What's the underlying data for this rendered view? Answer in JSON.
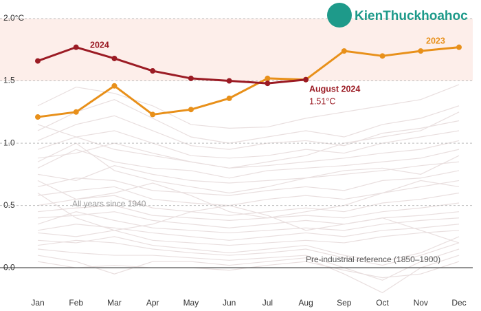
{
  "chart_data": {
    "type": "line",
    "categories": [
      "Jan",
      "Feb",
      "Mar",
      "Apr",
      "May",
      "Jun",
      "Jul",
      "Aug",
      "Sep",
      "Oct",
      "Nov",
      "Dec"
    ],
    "ylim": [
      -0.22,
      2.0
    ],
    "yticks": [
      {
        "value": 0,
        "label": "0.0"
      },
      0.5,
      {
        "value": 1,
        "label": "1.0"
      },
      1.5,
      {
        "value": 2,
        "label": "2.0°C"
      }
    ],
    "grid": true,
    "shaded_range": [
      1.5,
      2.0
    ],
    "shaded_color": "#fdeeea",
    "series": [
      {
        "name": "2024",
        "color": "#9b1b24",
        "values": [
          1.66,
          1.77,
          1.68,
          1.58,
          1.52,
          1.5,
          1.48,
          1.51,
          null,
          null,
          null,
          null
        ],
        "value_labels": [
          null,
          null,
          null,
          null,
          null,
          null,
          null,
          "1.51°C",
          null,
          null,
          null,
          null
        ]
      },
      {
        "name": "2023",
        "color": "#e8901a",
        "values": [
          1.21,
          1.25,
          1.46,
          1.23,
          1.27,
          1.36,
          1.52,
          1.51,
          1.74,
          1.7,
          1.74,
          1.77
        ]
      }
    ],
    "background_label": "All years since 1940",
    "background_color": "#e9dfdf",
    "background_series": [
      [
        1.3,
        1.45,
        1.4,
        1.3,
        1.15,
        1.12,
        1.13,
        1.2,
        1.25,
        1.3,
        1.35,
        1.47
      ],
      [
        1.1,
        1.25,
        1.35,
        1.2,
        1.05,
        1.0,
        1.05,
        1.1,
        1.05,
        1.15,
        1.2,
        1.3
      ],
      [
        1.02,
        1.15,
        1.22,
        1.1,
        0.98,
        0.95,
        1.0,
        1.02,
        0.98,
        1.08,
        1.12,
        1.18
      ],
      [
        0.95,
        1.05,
        1.1,
        1.0,
        0.9,
        0.88,
        0.9,
        0.95,
        0.92,
        1.0,
        1.05,
        1.1
      ],
      [
        0.88,
        0.92,
        1.0,
        0.92,
        0.85,
        0.8,
        0.82,
        0.85,
        0.88,
        0.92,
        0.95,
        1.02
      ],
      [
        0.8,
        0.95,
        0.85,
        0.8,
        0.78,
        0.72,
        0.78,
        0.8,
        0.82,
        0.85,
        0.88,
        0.95
      ],
      [
        0.75,
        0.7,
        0.82,
        0.75,
        0.7,
        0.68,
        0.7,
        0.72,
        0.75,
        0.78,
        0.82,
        0.85
      ],
      [
        0.65,
        0.72,
        0.7,
        0.62,
        0.6,
        0.58,
        0.62,
        0.65,
        0.62,
        0.7,
        0.72,
        0.78
      ],
      [
        0.58,
        0.62,
        0.65,
        0.55,
        0.52,
        0.5,
        0.55,
        0.58,
        0.55,
        0.6,
        0.65,
        0.7
      ],
      [
        0.5,
        0.55,
        0.58,
        0.48,
        0.45,
        0.42,
        0.45,
        0.48,
        0.45,
        0.52,
        0.55,
        0.6
      ],
      [
        0.45,
        0.48,
        0.5,
        0.42,
        0.4,
        0.38,
        0.4,
        0.42,
        0.4,
        0.45,
        0.48,
        0.52
      ],
      [
        0.4,
        0.42,
        0.45,
        0.38,
        0.35,
        0.32,
        0.35,
        0.38,
        0.35,
        0.4,
        0.42,
        0.45
      ],
      [
        0.35,
        0.45,
        0.38,
        0.32,
        0.3,
        0.28,
        0.3,
        0.32,
        0.3,
        0.35,
        0.38,
        0.4
      ],
      [
        0.3,
        0.35,
        0.32,
        0.28,
        0.25,
        0.22,
        0.25,
        0.28,
        0.25,
        0.3,
        0.32,
        0.35
      ],
      [
        0.28,
        0.25,
        0.3,
        0.22,
        0.2,
        0.18,
        0.2,
        0.22,
        0.2,
        0.25,
        0.28,
        0.3
      ],
      [
        0.22,
        0.2,
        0.25,
        0.18,
        0.15,
        0.12,
        0.15,
        0.18,
        0.1,
        0.05,
        0.12,
        0.25
      ],
      [
        0.18,
        0.22,
        0.2,
        0.15,
        0.12,
        0.1,
        0.12,
        0.15,
        0.08,
        0.02,
        0.1,
        0.2
      ],
      [
        0.15,
        0.12,
        0.1,
        0.1,
        0.08,
        0.06,
        0.08,
        0.1,
        0.0,
        -0.1,
        0.05,
        0.15
      ],
      [
        0.1,
        0.05,
        -0.05,
        0.05,
        0.05,
        0.02,
        0.05,
        0.08,
        -0.05,
        -0.2,
        0.0,
        0.1
      ],
      [
        0.05,
        0.0,
        0.02,
        0.0,
        0.0,
        -0.02,
        0.02,
        0.05,
        -0.02,
        -0.08,
        -0.05,
        0.05
      ],
      [
        0.6,
        0.4,
        0.3,
        0.35,
        0.45,
        0.5,
        0.42,
        0.3,
        0.35,
        0.4,
        0.3,
        0.2
      ],
      [
        0.7,
        0.55,
        0.6,
        0.68,
        0.58,
        0.45,
        0.4,
        0.45,
        0.5,
        0.6,
        0.7,
        0.65
      ],
      [
        0.85,
        1.0,
        0.78,
        0.7,
        0.65,
        0.6,
        0.65,
        0.72,
        0.78,
        0.8,
        0.75,
        0.9
      ],
      [
        1.15,
        1.05,
        0.95,
        0.9,
        0.85,
        0.8,
        0.85,
        0.9,
        1.0,
        1.05,
        1.1,
        1.25
      ]
    ],
    "annotations": {
      "highlight": "August 2024",
      "reference": "Pre-industrial reference (1850–1900)"
    },
    "watermark": "KienThuckhoahoc"
  }
}
